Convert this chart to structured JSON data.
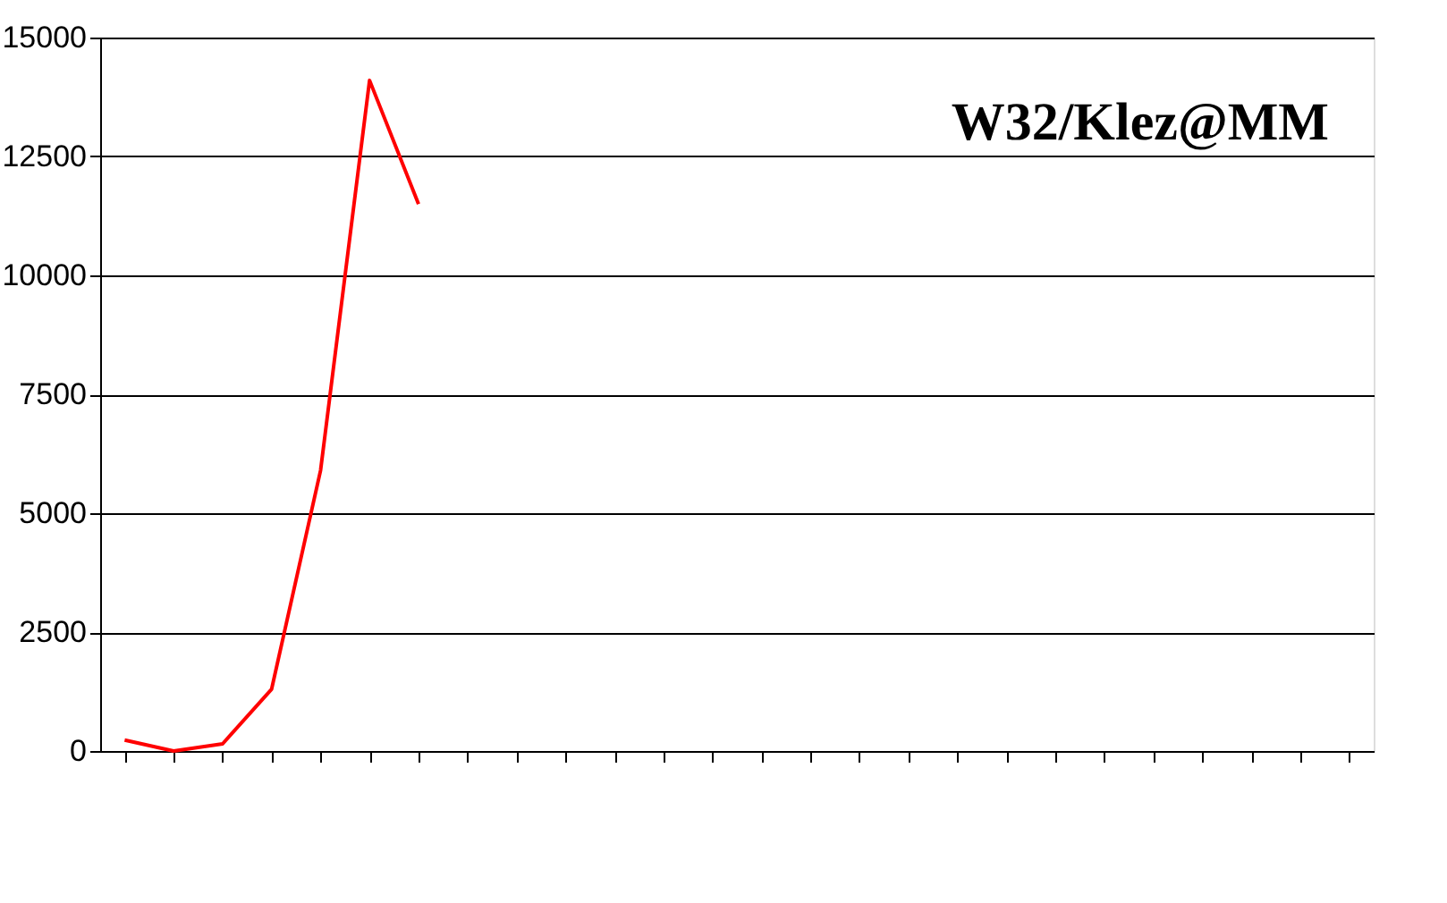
{
  "chart_data": {
    "type": "line",
    "title": "W32/Klez@MM",
    "categories": [
      null,
      null,
      null,
      null,
      null,
      null,
      null,
      null,
      null,
      null,
      null,
      null,
      null,
      null,
      null,
      null,
      null,
      null,
      null,
      null,
      null,
      null,
      null,
      null,
      null,
      null
    ],
    "series": [
      {
        "color": "#ff0000",
        "values": [
          230,
          0,
          150,
          1300,
          5900,
          14100,
          11500,
          null,
          null,
          null,
          null,
          null,
          null,
          null,
          null,
          null,
          null,
          null,
          null,
          null,
          null,
          null,
          null,
          null,
          null,
          null
        ]
      }
    ],
    "ylim": [
      0,
      15000
    ],
    "yticks": [
      0,
      2500,
      5000,
      7500,
      10000,
      12500,
      15000
    ],
    "grid": "y",
    "tick_labels": "y",
    "marker": "none",
    "line_style": "solid"
  }
}
